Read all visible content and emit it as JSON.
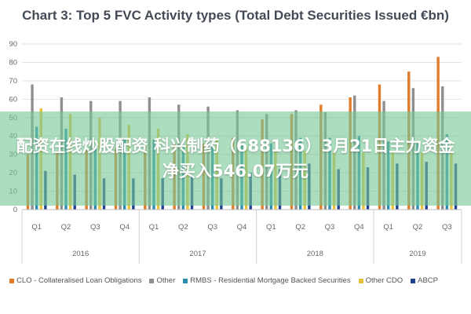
{
  "chart_data": {
    "type": "bar",
    "title": "Chart 3: Top 5 FVC Activity types (Total Debt Securities Issued €bn)",
    "xlabel": "",
    "ylabel": "",
    "ylim": [
      0,
      90
    ],
    "yticks": [
      0,
      10,
      20,
      30,
      40,
      50,
      60,
      70,
      80,
      90
    ],
    "categories": [
      "Q1",
      "Q2",
      "Q3",
      "Q4",
      "Q1",
      "Q2",
      "Q3",
      "Q4",
      "Q1",
      "Q2",
      "Q3",
      "Q4",
      "Q1",
      "Q2",
      "Q3"
    ],
    "year_groups": [
      {
        "label": "2016",
        "count": 4
      },
      {
        "label": "2017",
        "count": 4
      },
      {
        "label": "2018",
        "count": 4
      },
      {
        "label": "2019",
        "count": 3
      }
    ],
    "series": [
      {
        "name": "CLO - Collateralised Loan Obligations",
        "color": "#e07b2a",
        "values": [
          30,
          32,
          33,
          33,
          35,
          36,
          36,
          39,
          49,
          52,
          57,
          61,
          68,
          75,
          83
        ]
      },
      {
        "name": "Other",
        "color": "#8f8f8f",
        "values": [
          68,
          61,
          59,
          59,
          61,
          57,
          56,
          54,
          52,
          54,
          53,
          62,
          59,
          66,
          67
        ]
      },
      {
        "name": "RMBS - Residential Mortgage Backed Securities",
        "color": "#2a8cae",
        "values": [
          45,
          44,
          34,
          39,
          38,
          34,
          34,
          35,
          36,
          39,
          39,
          40,
          37,
          36,
          41
        ]
      },
      {
        "name": "Other CDO",
        "color": "#e8c23a",
        "values": [
          55,
          52,
          50,
          46,
          44,
          41,
          38,
          35,
          33,
          32,
          32,
          31,
          31,
          31,
          31
        ]
      },
      {
        "name": "ABCP",
        "color": "#1f3f8f",
        "values": [
          21,
          19,
          17,
          17,
          17,
          18,
          17,
          20,
          22,
          25,
          22,
          23,
          25,
          26,
          25
        ]
      }
    ],
    "legend_position": "bottom",
    "grid": true
  },
  "overlay": {
    "text": "配资在线炒股配资 科兴制药（688136）3月21日主力资金净买入546.07万元"
  }
}
